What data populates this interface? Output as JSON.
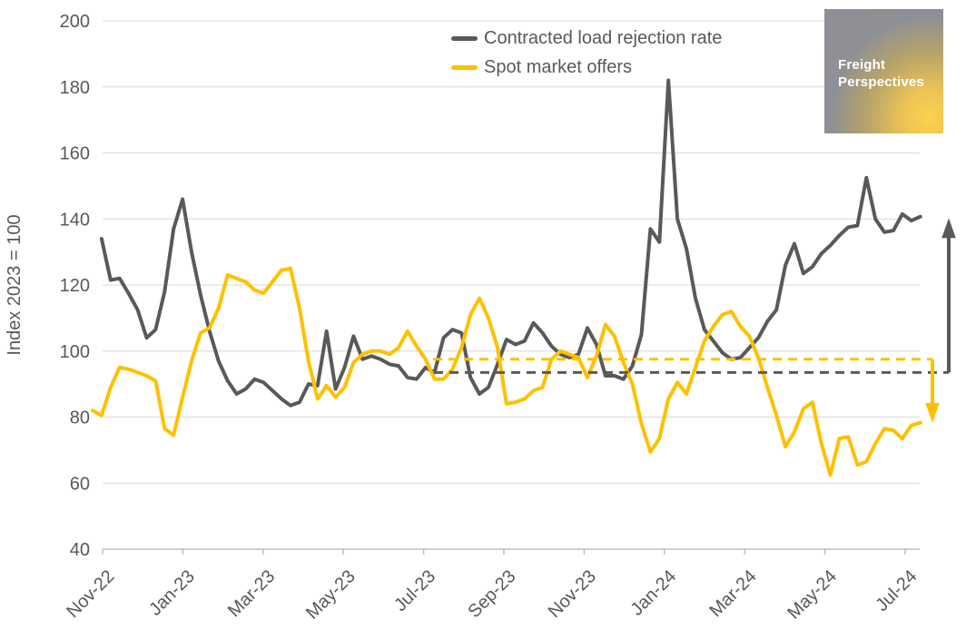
{
  "legend": {
    "items": [
      {
        "label": "Contracted load rejection rate",
        "color": "#595959"
      },
      {
        "label": "Spot market offers",
        "color": "#FFC000"
      }
    ]
  },
  "logo": {
    "line1": "Freight",
    "line2": "Perspectives"
  },
  "chart_data": {
    "type": "line",
    "title": "",
    "xlabel": "",
    "ylabel": "Index 2023 = 100",
    "ylim": [
      40,
      200
    ],
    "grid": "horizontal",
    "legend_position": "top-center",
    "y_ticks": [
      200,
      180,
      160,
      140,
      120,
      100,
      80,
      60,
      40
    ],
    "x_tick_labels": [
      "Nov-22",
      "Jan-23",
      "Mar-23",
      "May-23",
      "Jul-23",
      "Sep-23",
      "Nov-23",
      "Jan-24",
      "Mar-24",
      "May-24",
      "Jul-24"
    ],
    "x_unit": "week",
    "x_start": "Nov-22",
    "series": [
      {
        "name": "Contracted load rejection rate",
        "color": "#595959",
        "start_week": 1,
        "values": [
          134,
          121.5,
          122,
          117.5,
          112.5,
          104,
          106.5,
          118,
          137,
          146,
          130,
          117,
          106,
          97,
          91,
          87,
          88.5,
          91.5,
          90.5,
          88,
          85.5,
          83.5,
          84.5,
          90,
          89.5,
          106,
          88.5,
          95,
          104.5,
          97.5,
          98.5,
          97.5,
          96,
          95.5,
          92,
          91.5,
          95,
          93.5,
          104,
          106.5,
          105.5,
          92,
          87,
          89,
          96,
          103.5,
          102,
          103,
          108.5,
          105.5,
          101.5,
          99,
          98,
          99,
          107,
          102,
          92.5,
          92.5,
          91.5,
          95.5,
          105,
          137,
          133,
          182,
          140,
          131,
          116,
          106.5,
          103,
          99.5,
          97.5,
          98,
          101,
          104,
          109,
          112.5,
          126,
          132.5,
          123.5,
          125.5,
          129.5,
          132,
          135,
          137.5,
          138,
          152.5,
          140,
          136,
          136.5,
          141.5,
          139.5,
          140.7
        ]
      },
      {
        "name": "Spot market offers",
        "color": "#FFC000",
        "start_week": 0,
        "values": [
          82,
          80.5,
          89,
          95,
          94.5,
          93.5,
          92.5,
          91,
          76.5,
          74.5,
          86,
          97,
          105.5,
          107,
          113,
          123,
          122,
          121,
          118.5,
          117.5,
          121,
          124.5,
          125,
          113,
          97,
          85.5,
          89.5,
          86,
          89,
          96.5,
          99,
          100,
          100,
          99,
          101,
          106,
          101.5,
          97.5,
          91.5,
          91.5,
          94.5,
          101,
          111,
          116,
          110,
          101,
          84,
          84.5,
          85.5,
          88,
          89,
          97.5,
          100,
          99,
          98,
          92,
          98.5,
          108,
          104.5,
          96.5,
          90,
          78,
          69.5,
          73.5,
          85.5,
          90.5,
          87,
          95,
          103,
          107.5,
          111,
          112,
          107.5,
          104.5,
          98,
          89,
          80.5,
          71,
          75.5,
          82.5,
          84.5,
          72,
          62.5,
          73.5,
          74,
          65.5,
          66.5,
          72,
          76.5,
          76,
          73.5,
          77.5,
          78.3
        ]
      }
    ],
    "reference_lines": [
      {
        "name": "contracted-average-dashed",
        "color": "#595959",
        "style": "dashed",
        "value": 93.5
      },
      {
        "name": "spot-average-dashed",
        "color": "#FFC000",
        "style": "dashed",
        "value": 97.5
      }
    ],
    "annotations": [
      {
        "name": "contracted-change-arrow",
        "direction": "up",
        "color": "#595959",
        "from": 93.5,
        "to": 140
      },
      {
        "name": "spot-change-arrow",
        "direction": "down",
        "color": "#FFC000",
        "from": 97.5,
        "to": 78.5
      }
    ]
  }
}
